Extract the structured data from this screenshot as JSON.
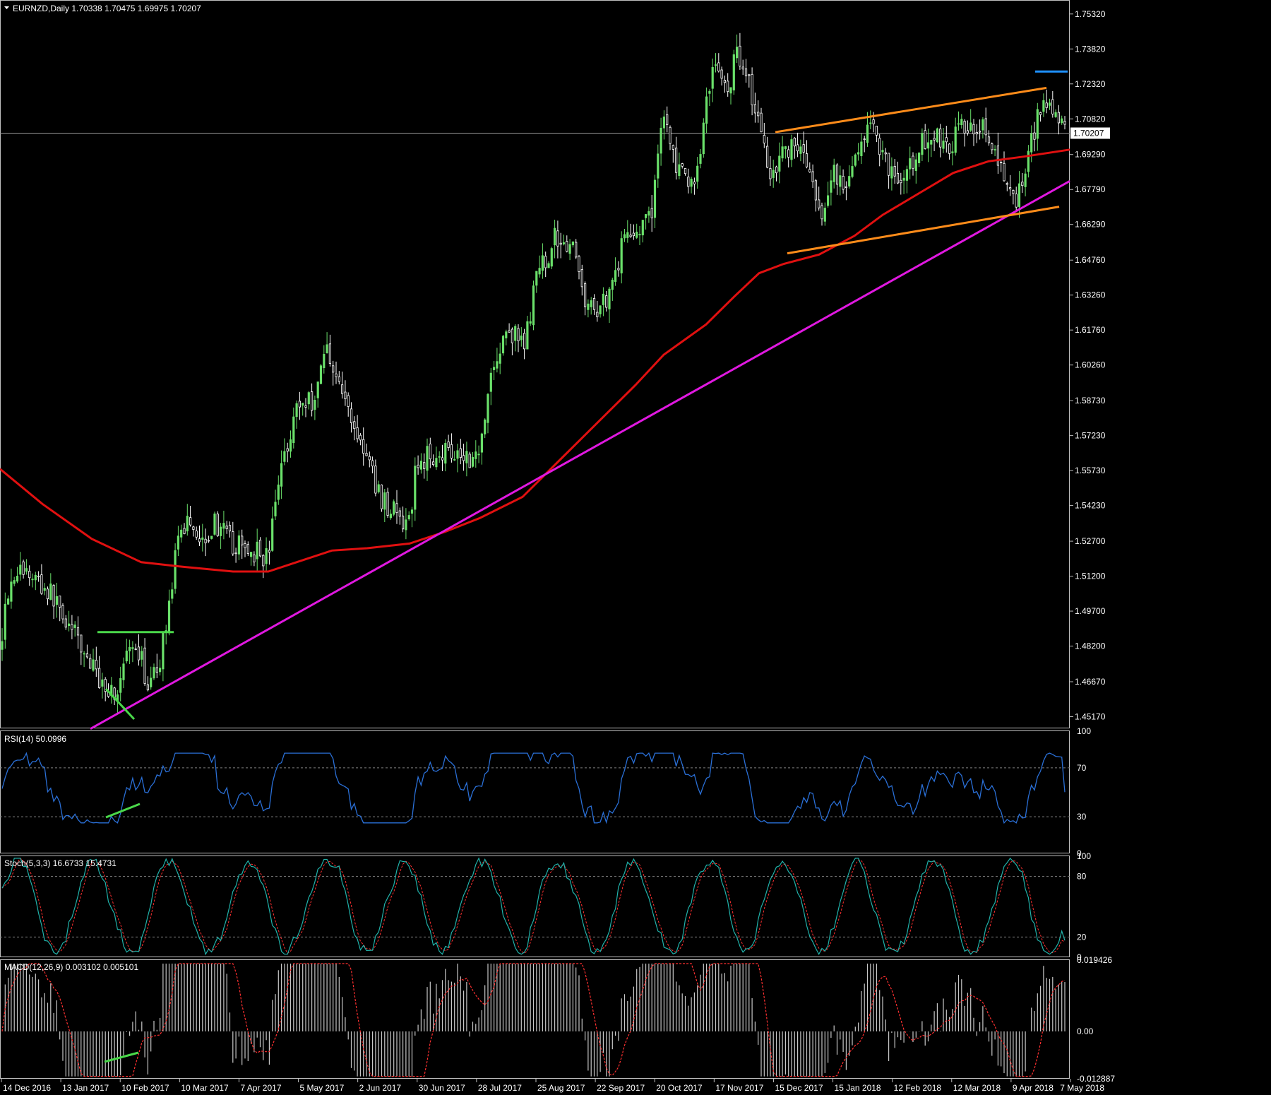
{
  "colors": {
    "background": "#000000",
    "frame": "#c0c0c0",
    "grid_dotted": "#808080",
    "bull_candle": "#6ae06a",
    "bear_candle": "#ffffff",
    "ma_red": "#e01010",
    "trend_magenta": "#e018e0",
    "channel_orange": "#ff8c1a",
    "resistance_blue": "#1e90ff",
    "annotation_green": "#4ad84a",
    "rsi_line": "#2a6fd6",
    "stoch_main": "#20b2aa",
    "stoch_signal": "#ff3030",
    "macd_hist": "#c8c8c8",
    "macd_signal": "#ff3030"
  },
  "header": {
    "symbol_line": "EURNZD,Daily  1.70338 1.70475 1.69975 1.70207"
  },
  "price_axis": {
    "ticks": [
      "1.75320",
      "1.73820",
      "1.72320",
      "1.70820",
      "1.69290",
      "1.67790",
      "1.66290",
      "1.64760",
      "1.63260",
      "1.61760",
      "1.60260",
      "1.58730",
      "1.57230",
      "1.55730",
      "1.54230",
      "1.52700",
      "1.51200",
      "1.49700",
      "1.48200",
      "1.46670",
      "1.45170"
    ],
    "current_price_label": "1.70207"
  },
  "panels": {
    "rsi": {
      "label": "RSI(14) 50.0996",
      "axis": [
        "100",
        "70",
        "30",
        "0"
      ]
    },
    "stoch": {
      "label": "Stoch(5,3,3) 16.6733 15.4731",
      "axis": [
        "100",
        "80",
        "20",
        "0"
      ]
    },
    "macd": {
      "label": "MACD(12,26,9) 0.003102 0.005101",
      "axis": [
        "0.019426",
        "0.00",
        "-0.012887"
      ]
    }
  },
  "time_axis": {
    "labels": [
      "14 Dec 2016",
      "13 Jan 2017",
      "10 Feb 2017",
      "10 Mar 2017",
      "7 Apr 2017",
      "5 May 2017",
      "2 Jun 2017",
      "30 Jun 2017",
      "28 Jul 2017",
      "25 Aug 2017",
      "22 Sep 2017",
      "20 Oct 2017",
      "17 Nov 2017",
      "15 Dec 2017",
      "15 Jan 2018",
      "12 Feb 2018",
      "12 Mar 2018",
      "9 Apr 2018",
      "7 May 2018"
    ]
  },
  "chart_data": {
    "type": "candlestick",
    "symbol": "EURNZD",
    "timeframe": "Daily",
    "last_bar": {
      "open": 1.70338,
      "high": 1.70475,
      "low": 1.69975,
      "close": 1.70207
    },
    "ylim": [
      1.4467,
      1.7592
    ],
    "x_range": [
      "2016-12-14",
      "2018-05-07"
    ],
    "close_path": [
      [
        0,
        1.48
      ],
      [
        8,
        1.503
      ],
      [
        22,
        1.515
      ],
      [
        48,
        1.512
      ],
      [
        78,
        1.502
      ],
      [
        110,
        1.484
      ],
      [
        140,
        1.468
      ],
      [
        165,
        1.461
      ],
      [
        180,
        1.478
      ],
      [
        200,
        1.476
      ],
      [
        212,
        1.463
      ],
      [
        228,
        1.478
      ],
      [
        250,
        1.522
      ],
      [
        265,
        1.538
      ],
      [
        285,
        1.528
      ],
      [
        305,
        1.535
      ],
      [
        330,
        1.525
      ],
      [
        360,
        1.523
      ],
      [
        380,
        1.52
      ],
      [
        395,
        1.555
      ],
      [
        420,
        1.585
      ],
      [
        445,
        1.588
      ],
      [
        462,
        1.612
      ],
      [
        485,
        1.59
      ],
      [
        510,
        1.57
      ],
      [
        540,
        1.545
      ],
      [
        560,
        1.54
      ],
      [
        577,
        1.53
      ],
      [
        590,
        1.56
      ],
      [
        615,
        1.565
      ],
      [
        640,
        1.567
      ],
      [
        675,
        1.562
      ],
      [
        695,
        1.598
      ],
      [
        720,
        1.618
      ],
      [
        742,
        1.61
      ],
      [
        760,
        1.64
      ],
      [
        788,
        1.658
      ],
      [
        808,
        1.655
      ],
      [
        835,
        1.625
      ],
      [
        860,
        1.632
      ],
      [
        890,
        1.662
      ],
      [
        905,
        1.66
      ],
      [
        922,
        1.665
      ],
      [
        938,
        1.713
      ],
      [
        955,
        1.69
      ],
      [
        975,
        1.678
      ],
      [
        990,
        1.688
      ],
      [
        1000,
        1.718
      ],
      [
        1012,
        1.732
      ],
      [
        1030,
        1.72
      ],
      [
        1045,
        1.738
      ],
      [
        1058,
        1.728
      ],
      [
        1075,
        1.705
      ],
      [
        1092,
        1.685
      ],
      [
        1108,
        1.695
      ],
      [
        1135,
        1.697
      ],
      [
        1152,
        1.678
      ],
      [
        1163,
        1.66
      ],
      [
        1180,
        1.688
      ],
      [
        1200,
        1.675
      ],
      [
        1215,
        1.698
      ],
      [
        1235,
        1.705
      ],
      [
        1255,
        1.69
      ],
      [
        1280,
        1.68
      ],
      [
        1300,
        1.695
      ],
      [
        1320,
        1.703
      ],
      [
        1340,
        1.695
      ],
      [
        1365,
        1.705
      ],
      [
        1390,
        1.707
      ],
      [
        1410,
        1.69
      ],
      [
        1425,
        1.68
      ],
      [
        1440,
        1.673
      ],
      [
        1452,
        1.688
      ],
      [
        1468,
        1.708
      ],
      [
        1478,
        1.72
      ],
      [
        1488,
        1.713
      ],
      [
        1500,
        1.705
      ],
      [
        1510,
        1.702
      ]
    ],
    "overlays": [
      {
        "name": "moving_average",
        "color": "red",
        "points": [
          [
            0,
            1.558
          ],
          [
            60,
            1.543
          ],
          [
            130,
            1.528
          ],
          [
            200,
            1.518
          ],
          [
            260,
            1.516
          ],
          [
            330,
            1.514
          ],
          [
            380,
            1.514
          ],
          [
            420,
            1.518
          ],
          [
            470,
            1.523
          ],
          [
            520,
            1.524
          ],
          [
            580,
            1.526
          ],
          [
            630,
            1.531
          ],
          [
            680,
            1.537
          ],
          [
            740,
            1.546
          ],
          [
            800,
            1.564
          ],
          [
            860,
            1.582
          ],
          [
            900,
            1.594
          ],
          [
            940,
            1.607
          ],
          [
            1000,
            1.62
          ],
          [
            1040,
            1.632
          ],
          [
            1075,
            1.642
          ],
          [
            1110,
            1.646
          ],
          [
            1160,
            1.65
          ],
          [
            1210,
            1.658
          ],
          [
            1250,
            1.667
          ],
          [
            1300,
            1.676
          ],
          [
            1350,
            1.685
          ],
          [
            1400,
            1.69
          ],
          [
            1450,
            1.692
          ],
          [
            1515,
            1.695
          ]
        ]
      },
      {
        "name": "uptrend_line",
        "color": "magenta",
        "from": [
          128,
          1.4465
        ],
        "to": [
          1515,
          1.6815
        ]
      },
      {
        "name": "channel_upper",
        "color": "orange",
        "from": [
          1098,
          1.7025
        ],
        "to": [
          1482,
          1.7215
        ]
      },
      {
        "name": "channel_lower",
        "color": "orange",
        "from": [
          1115,
          1.6505
        ],
        "to": [
          1500,
          1.6705
        ]
      },
      {
        "name": "resistance",
        "color": "blue",
        "from": [
          1466,
          1.7285
        ],
        "to": [
          1512,
          1.7285
        ]
      },
      {
        "name": "breakout_level",
        "color": "green",
        "from": [
          138,
          1.488
        ],
        "to": [
          246,
          1.488
        ]
      }
    ],
    "indicators": {
      "rsi_14": {
        "last": 50.0996,
        "levels": [
          70,
          30
        ]
      },
      "stochastic_5_3_3": {
        "main": 16.6733,
        "signal": 15.4731,
        "levels": [
          80,
          20
        ]
      },
      "macd_12_26_9": {
        "main": 0.003102,
        "signal": 0.005101,
        "ylim": [
          -0.012887,
          0.019426
        ]
      }
    }
  }
}
